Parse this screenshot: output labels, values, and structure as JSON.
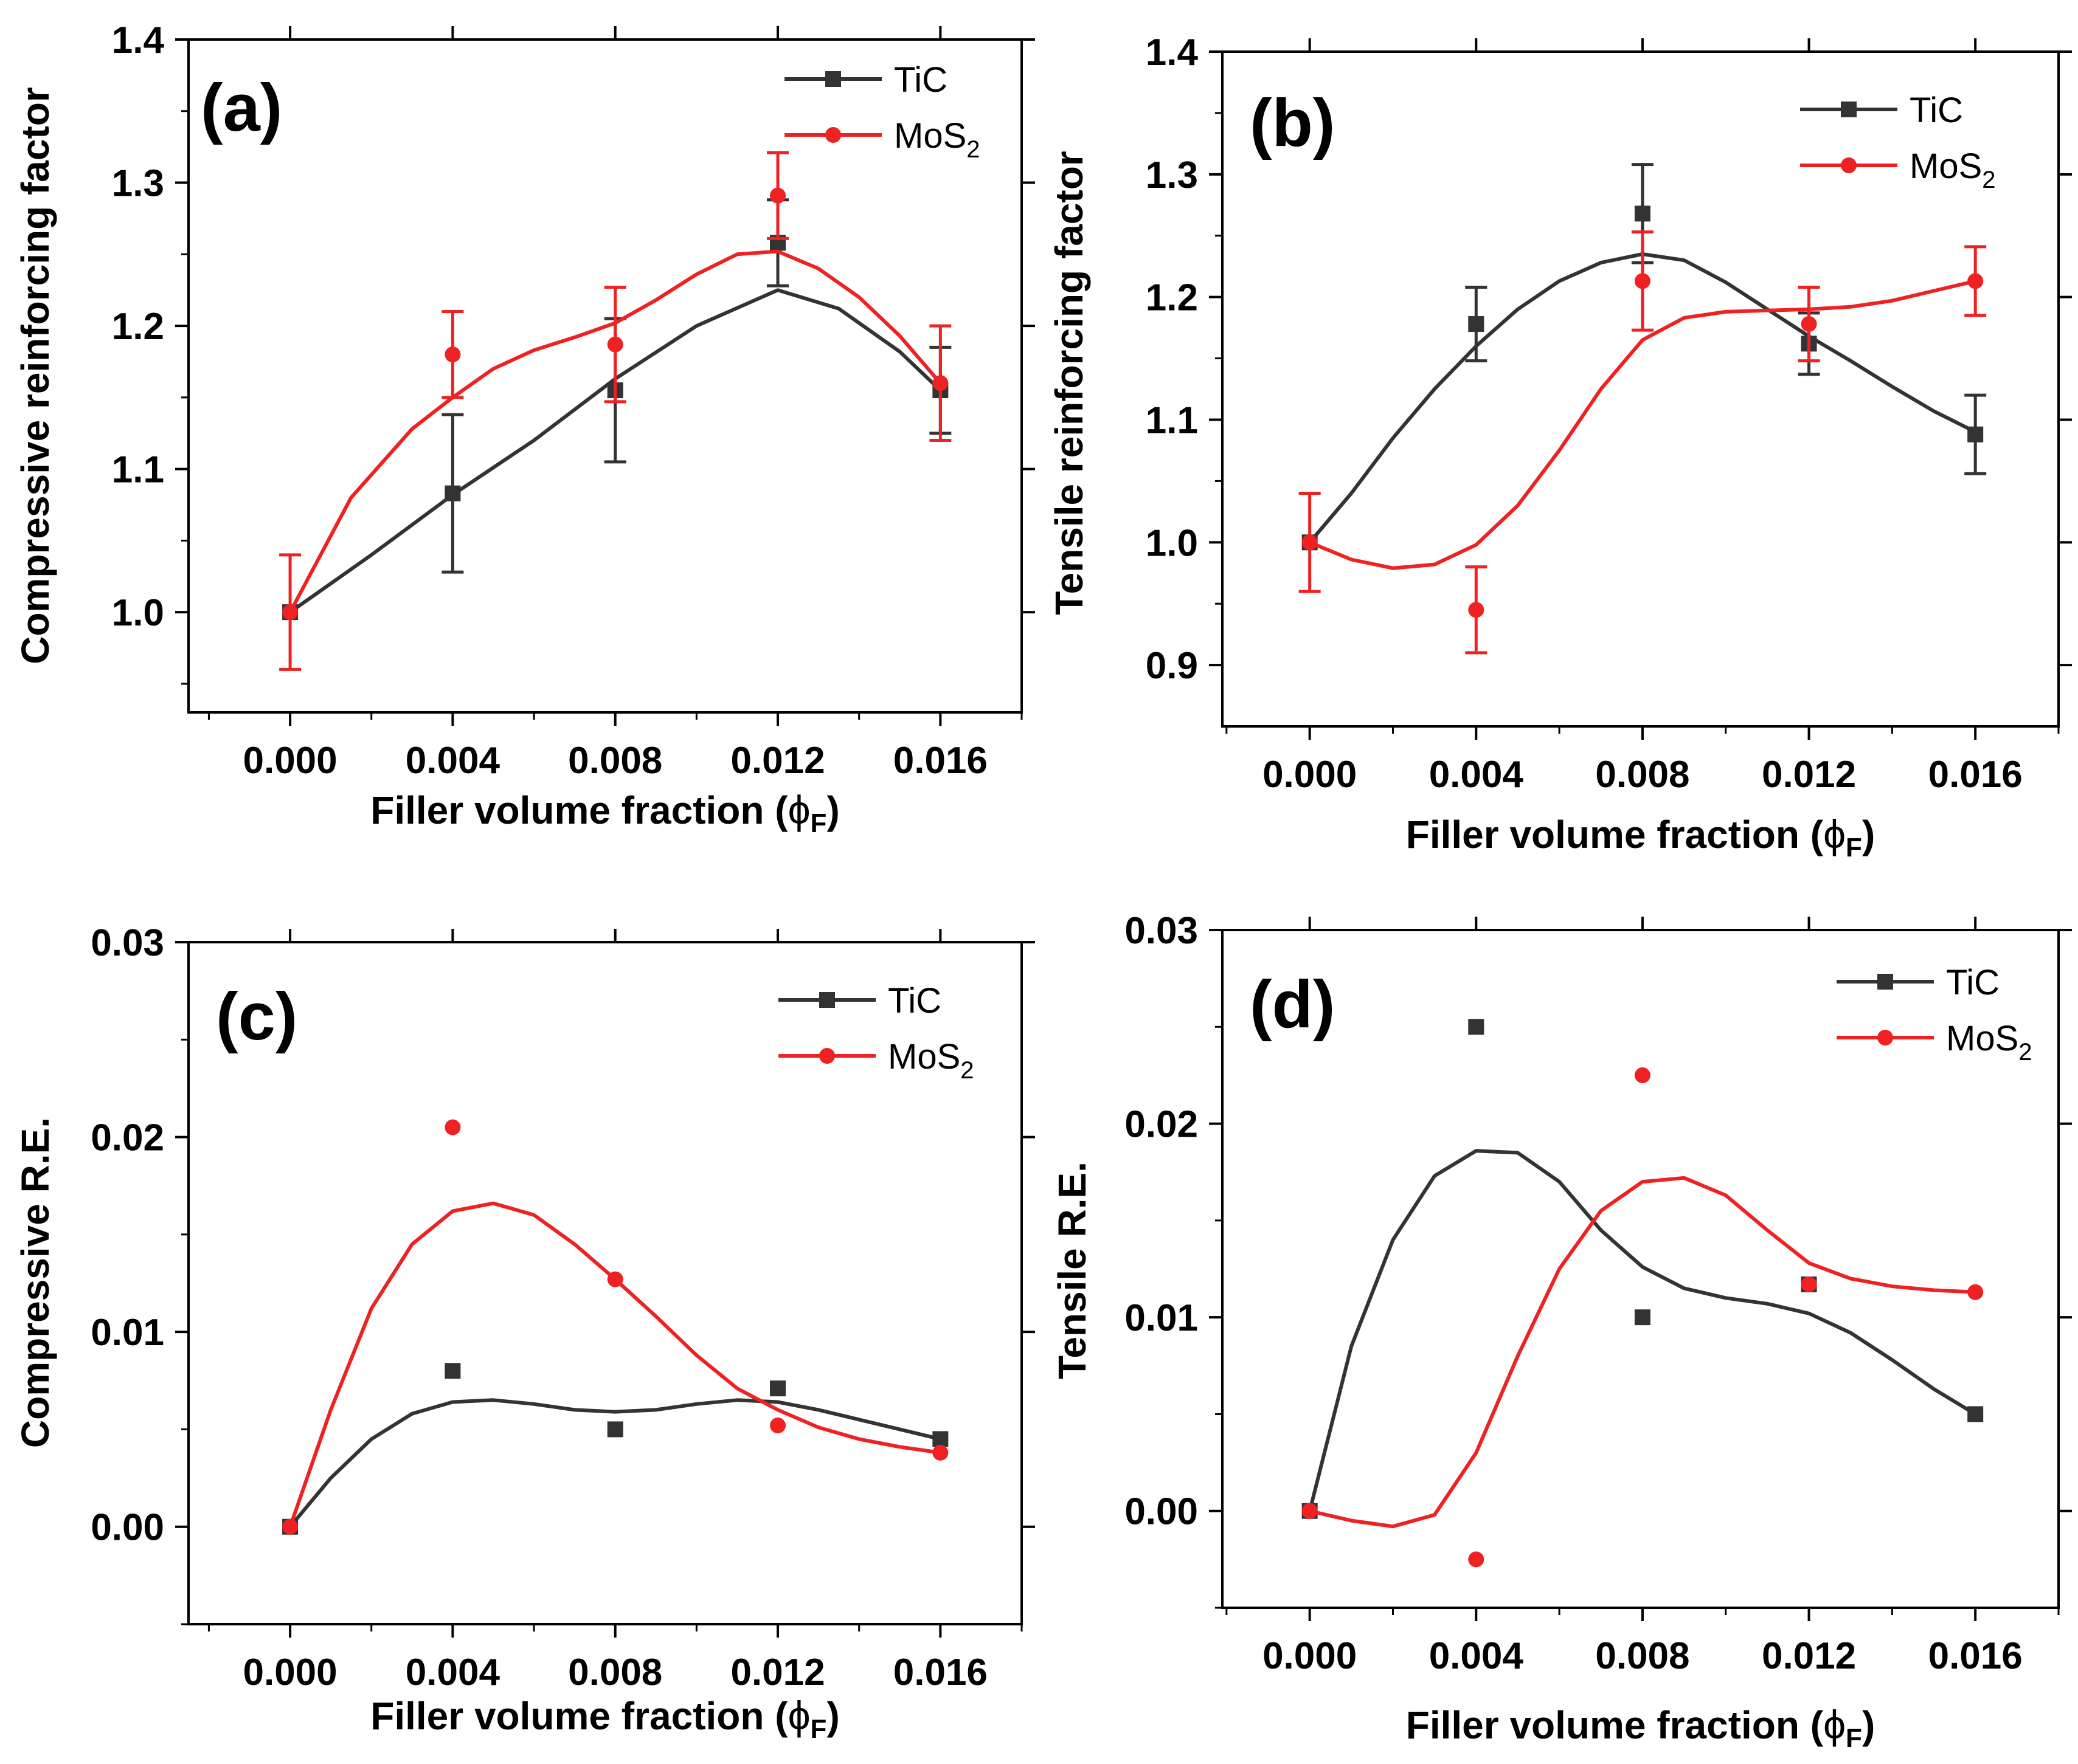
{
  "colors": {
    "TiC": "#333333",
    "MoS2": "#ee2222",
    "axis": "#000000"
  },
  "chart_data": [
    {
      "type": "line",
      "panel_label": "(a)",
      "xlabel_prefix": "Filler volume fraction (",
      "xlabel_symbol": "ϕ",
      "xlabel_sub": "F",
      "xlabel_suffix": ")",
      "ylabel": "Compressive reinforcing factor",
      "xlim": [
        -0.0025,
        0.018
      ],
      "ylim": [
        0.93,
        1.4
      ],
      "xticks": [
        0.0,
        0.004,
        0.008,
        0.012,
        0.016
      ],
      "xtick_labels": [
        "0.000",
        "0.004",
        "0.008",
        "0.012",
        "0.016"
      ],
      "yticks": [
        1.0,
        1.1,
        1.2,
        1.3,
        1.4
      ],
      "ytick_labels": [
        "1.0",
        "1.1",
        "1.2",
        "1.3",
        "1.4"
      ],
      "legend_position": "top-right",
      "series": [
        {
          "name": "TiC",
          "legend_base": "TiC",
          "legend_sub": "",
          "color_key": "TiC",
          "marker": "square",
          "x": [
            0.0,
            0.004,
            0.008,
            0.012,
            0.016
          ],
          "y": [
            1.0,
            1.083,
            1.155,
            1.258,
            1.155
          ],
          "err": [
            0.0,
            0.055,
            0.05,
            0.03,
            0.03
          ],
          "curve": [
            [
              0.0,
              1.0
            ],
            [
              0.002,
              1.04
            ],
            [
              0.004,
              1.082
            ],
            [
              0.006,
              1.12
            ],
            [
              0.008,
              1.163
            ],
            [
              0.01,
              1.2
            ],
            [
              0.012,
              1.225
            ],
            [
              0.0135,
              1.212
            ],
            [
              0.015,
              1.182
            ],
            [
              0.016,
              1.155
            ]
          ]
        },
        {
          "name": "MoS2",
          "legend_base": "MoS",
          "legend_sub": "2",
          "color_key": "MoS2",
          "marker": "circle",
          "x": [
            0.0,
            0.004,
            0.008,
            0.012,
            0.016
          ],
          "y": [
            1.0,
            1.18,
            1.187,
            1.291,
            1.16
          ],
          "err": [
            0.04,
            0.03,
            0.04,
            0.03,
            0.04
          ],
          "curve": [
            [
              0.0,
              1.0
            ],
            [
              0.0015,
              1.08
            ],
            [
              0.003,
              1.128
            ],
            [
              0.004,
              1.15
            ],
            [
              0.005,
              1.17
            ],
            [
              0.006,
              1.183
            ],
            [
              0.007,
              1.192
            ],
            [
              0.008,
              1.202
            ],
            [
              0.009,
              1.218
            ],
            [
              0.01,
              1.236
            ],
            [
              0.011,
              1.25
            ],
            [
              0.012,
              1.252
            ],
            [
              0.013,
              1.24
            ],
            [
              0.014,
              1.22
            ],
            [
              0.015,
              1.193
            ],
            [
              0.016,
              1.16
            ]
          ]
        }
      ]
    },
    {
      "type": "line",
      "panel_label": "(b)",
      "xlabel_prefix": "Filler volume fraction (",
      "xlabel_symbol": "ϕ",
      "xlabel_sub": "F",
      "xlabel_suffix": ")",
      "ylabel": "Tensile reinforcing factor",
      "xlim": [
        -0.0021,
        0.018
      ],
      "ylim": [
        0.85,
        1.4
      ],
      "xticks": [
        0.0,
        0.004,
        0.008,
        0.012,
        0.016
      ],
      "xtick_labels": [
        "0.000",
        "0.004",
        "0.008",
        "0.012",
        "0.016"
      ],
      "yticks": [
        0.9,
        1.0,
        1.1,
        1.2,
        1.3,
        1.4
      ],
      "ytick_labels": [
        "0.9",
        "1.0",
        "1.1",
        "1.2",
        "1.3",
        "1.4"
      ],
      "legend_position": "top-right",
      "series": [
        {
          "name": "TiC",
          "legend_base": "TiC",
          "legend_sub": "",
          "color_key": "TiC",
          "marker": "square",
          "x": [
            0.0,
            0.004,
            0.008,
            0.012,
            0.016
          ],
          "y": [
            1.0,
            1.178,
            1.268,
            1.162,
            1.088
          ],
          "err": [
            0.0,
            0.03,
            0.04,
            0.025,
            0.032
          ],
          "curve": [
            [
              0.0,
              1.0
            ],
            [
              0.001,
              1.04
            ],
            [
              0.002,
              1.085
            ],
            [
              0.003,
              1.125
            ],
            [
              0.004,
              1.16
            ],
            [
              0.005,
              1.19
            ],
            [
              0.006,
              1.213
            ],
            [
              0.007,
              1.228
            ],
            [
              0.008,
              1.235
            ],
            [
              0.009,
              1.23
            ],
            [
              0.01,
              1.212
            ],
            [
              0.011,
              1.19
            ],
            [
              0.012,
              1.168
            ],
            [
              0.013,
              1.148
            ],
            [
              0.014,
              1.127
            ],
            [
              0.015,
              1.107
            ],
            [
              0.016,
              1.09
            ]
          ]
        },
        {
          "name": "MoS2",
          "legend_base": "MoS",
          "legend_sub": "2",
          "color_key": "MoS2",
          "marker": "circle",
          "x": [
            0.0,
            0.004,
            0.008,
            0.012,
            0.016
          ],
          "y": [
            1.0,
            0.945,
            1.213,
            1.178,
            1.213
          ],
          "err": [
            0.04,
            0.035,
            0.04,
            0.03,
            0.028
          ],
          "curve": [
            [
              0.0,
              1.0
            ],
            [
              0.001,
              0.986
            ],
            [
              0.002,
              0.979
            ],
            [
              0.003,
              0.982
            ],
            [
              0.004,
              0.998
            ],
            [
              0.005,
              1.03
            ],
            [
              0.006,
              1.075
            ],
            [
              0.007,
              1.125
            ],
            [
              0.008,
              1.165
            ],
            [
              0.009,
              1.183
            ],
            [
              0.01,
              1.188
            ],
            [
              0.011,
              1.189
            ],
            [
              0.012,
              1.19
            ],
            [
              0.013,
              1.192
            ],
            [
              0.014,
              1.197
            ],
            [
              0.015,
              1.205
            ],
            [
              0.016,
              1.213
            ]
          ]
        }
      ]
    },
    {
      "type": "line",
      "panel_label": "(c)",
      "xlabel_prefix": "Filler volume fraction (",
      "xlabel_symbol": "ϕ",
      "xlabel_sub": "F",
      "xlabel_suffix": ")",
      "ylabel": "Compressive R.E.",
      "xlim": [
        -0.0025,
        0.018
      ],
      "ylim": [
        -0.005,
        0.03
      ],
      "xticks": [
        0.0,
        0.004,
        0.008,
        0.012,
        0.016
      ],
      "xtick_labels": [
        "0.000",
        "0.004",
        "0.008",
        "0.012",
        "0.016"
      ],
      "yticks": [
        0.0,
        0.01,
        0.02,
        0.03
      ],
      "ytick_labels": [
        "0.00",
        "0.01",
        "0.02",
        "0.03"
      ],
      "legend_position": "top-right",
      "series": [
        {
          "name": "TiC",
          "legend_base": "TiC",
          "legend_sub": "",
          "color_key": "TiC",
          "marker": "square",
          "x": [
            0.0,
            0.004,
            0.008,
            0.012,
            0.016
          ],
          "y": [
            0.0,
            0.008,
            0.005,
            0.0071,
            0.0045
          ],
          "err": [],
          "curve": [
            [
              0.0,
              0.0
            ],
            [
              0.001,
              0.0025
            ],
            [
              0.002,
              0.0045
            ],
            [
              0.003,
              0.0058
            ],
            [
              0.004,
              0.0064
            ],
            [
              0.005,
              0.0065
            ],
            [
              0.006,
              0.0063
            ],
            [
              0.007,
              0.006
            ],
            [
              0.008,
              0.0059
            ],
            [
              0.009,
              0.006
            ],
            [
              0.01,
              0.0063
            ],
            [
              0.011,
              0.0065
            ],
            [
              0.012,
              0.0064
            ],
            [
              0.013,
              0.006
            ],
            [
              0.014,
              0.0055
            ],
            [
              0.015,
              0.005
            ],
            [
              0.016,
              0.0045
            ]
          ]
        },
        {
          "name": "MoS2",
          "legend_base": "MoS",
          "legend_sub": "2",
          "color_key": "MoS2",
          "marker": "circle",
          "x": [
            0.0,
            0.004,
            0.008,
            0.012,
            0.016
          ],
          "y": [
            0.0,
            0.0205,
            0.0127,
            0.0052,
            0.0038
          ],
          "err": [],
          "curve": [
            [
              0.0,
              0.0
            ],
            [
              0.001,
              0.006
            ],
            [
              0.002,
              0.0112
            ],
            [
              0.003,
              0.0145
            ],
            [
              0.004,
              0.0162
            ],
            [
              0.005,
              0.0166
            ],
            [
              0.006,
              0.016
            ],
            [
              0.007,
              0.0145
            ],
            [
              0.008,
              0.0127
            ],
            [
              0.009,
              0.0108
            ],
            [
              0.01,
              0.0088
            ],
            [
              0.011,
              0.0071
            ],
            [
              0.012,
              0.006
            ],
            [
              0.013,
              0.0051
            ],
            [
              0.014,
              0.0045
            ],
            [
              0.015,
              0.0041
            ],
            [
              0.016,
              0.0038
            ]
          ]
        }
      ]
    },
    {
      "type": "line",
      "panel_label": "(d)",
      "xlabel_prefix": "Filler volume fraction (",
      "xlabel_symbol": "ϕ",
      "xlabel_sub": "F",
      "xlabel_suffix": ")",
      "ylabel": "Tensile R.E.",
      "xlim": [
        -0.0021,
        0.018
      ],
      "ylim": [
        -0.005,
        0.03
      ],
      "xticks": [
        0.0,
        0.004,
        0.008,
        0.012,
        0.016
      ],
      "xtick_labels": [
        "0.000",
        "0.004",
        "0.008",
        "0.012",
        "0.016"
      ],
      "yticks": [
        0.0,
        0.01,
        0.02,
        0.03
      ],
      "ytick_labels": [
        "0.00",
        "0.01",
        "0.02",
        "0.03"
      ],
      "legend_position": "top-right",
      "series": [
        {
          "name": "TiC",
          "legend_base": "TiC",
          "legend_sub": "",
          "color_key": "TiC",
          "marker": "square",
          "x": [
            0.0,
            0.004,
            0.008,
            0.012,
            0.016
          ],
          "y": [
            0.0,
            0.025,
            0.01,
            0.0117,
            0.005
          ],
          "err": [],
          "curve": [
            [
              0.0,
              0.0
            ],
            [
              0.001,
              0.0085
            ],
            [
              0.002,
              0.014
            ],
            [
              0.003,
              0.0173
            ],
            [
              0.004,
              0.0186
            ],
            [
              0.005,
              0.0185
            ],
            [
              0.006,
              0.017
            ],
            [
              0.007,
              0.0145
            ],
            [
              0.008,
              0.0126
            ],
            [
              0.009,
              0.0115
            ],
            [
              0.01,
              0.011
            ],
            [
              0.011,
              0.0107
            ],
            [
              0.012,
              0.0102
            ],
            [
              0.013,
              0.0092
            ],
            [
              0.014,
              0.0078
            ],
            [
              0.015,
              0.0063
            ],
            [
              0.016,
              0.005
            ]
          ]
        },
        {
          "name": "MoS2",
          "legend_base": "MoS",
          "legend_sub": "2",
          "color_key": "MoS2",
          "marker": "circle",
          "x": [
            0.0,
            0.004,
            0.008,
            0.012,
            0.016
          ],
          "y": [
            0.0,
            -0.0025,
            0.0225,
            0.0117,
            0.0113
          ],
          "err": [],
          "curve": [
            [
              0.0,
              0.0
            ],
            [
              0.001,
              -0.0005
            ],
            [
              0.002,
              -0.0008
            ],
            [
              0.003,
              -0.0002
            ],
            [
              0.004,
              0.003
            ],
            [
              0.005,
              0.008
            ],
            [
              0.006,
              0.0125
            ],
            [
              0.007,
              0.0155
            ],
            [
              0.008,
              0.017
            ],
            [
              0.009,
              0.0172
            ],
            [
              0.01,
              0.0163
            ],
            [
              0.011,
              0.0145
            ],
            [
              0.012,
              0.0128
            ],
            [
              0.013,
              0.012
            ],
            [
              0.014,
              0.0116
            ],
            [
              0.015,
              0.0114
            ],
            [
              0.016,
              0.0113
            ]
          ]
        }
      ]
    }
  ]
}
